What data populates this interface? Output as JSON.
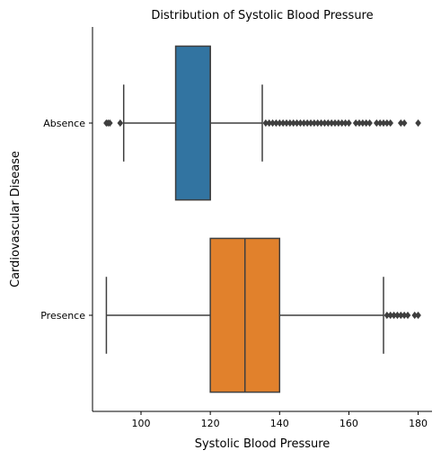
{
  "chart_data": {
    "type": "box",
    "title": "Distribution of Systolic Blood Pressure",
    "xlabel": "Systolic Blood Pressure",
    "ylabel": "Cardiovascular Disease",
    "xlim": [
      86,
      184
    ],
    "xticks": [
      100,
      120,
      140,
      160,
      180
    ],
    "grid": false,
    "legend": "none",
    "orientation": "horizontal",
    "categories": [
      "Absence",
      "Presence"
    ],
    "series": [
      {
        "category": "Absence",
        "color": "#3274a1",
        "whisker_low": 95,
        "q1": 110,
        "median": 120,
        "q3": 120,
        "whisker_high": 135,
        "outliers": [
          90,
          90.5,
          91,
          94,
          136,
          137,
          138,
          139,
          140,
          141,
          142,
          143,
          144,
          145,
          146,
          147,
          148,
          149,
          150,
          151,
          152,
          153,
          154,
          155,
          156,
          157,
          158,
          159,
          160,
          162,
          163,
          164,
          165,
          166,
          168,
          169,
          170,
          171,
          172,
          175,
          176,
          180
        ]
      },
      {
        "category": "Presence",
        "color": "#e1812c",
        "whisker_low": 90,
        "q1": 120,
        "median": 130,
        "q3": 140,
        "whisker_high": 170,
        "outliers": [
          171,
          172,
          173,
          174,
          175,
          176,
          177,
          179,
          180
        ]
      }
    ]
  }
}
